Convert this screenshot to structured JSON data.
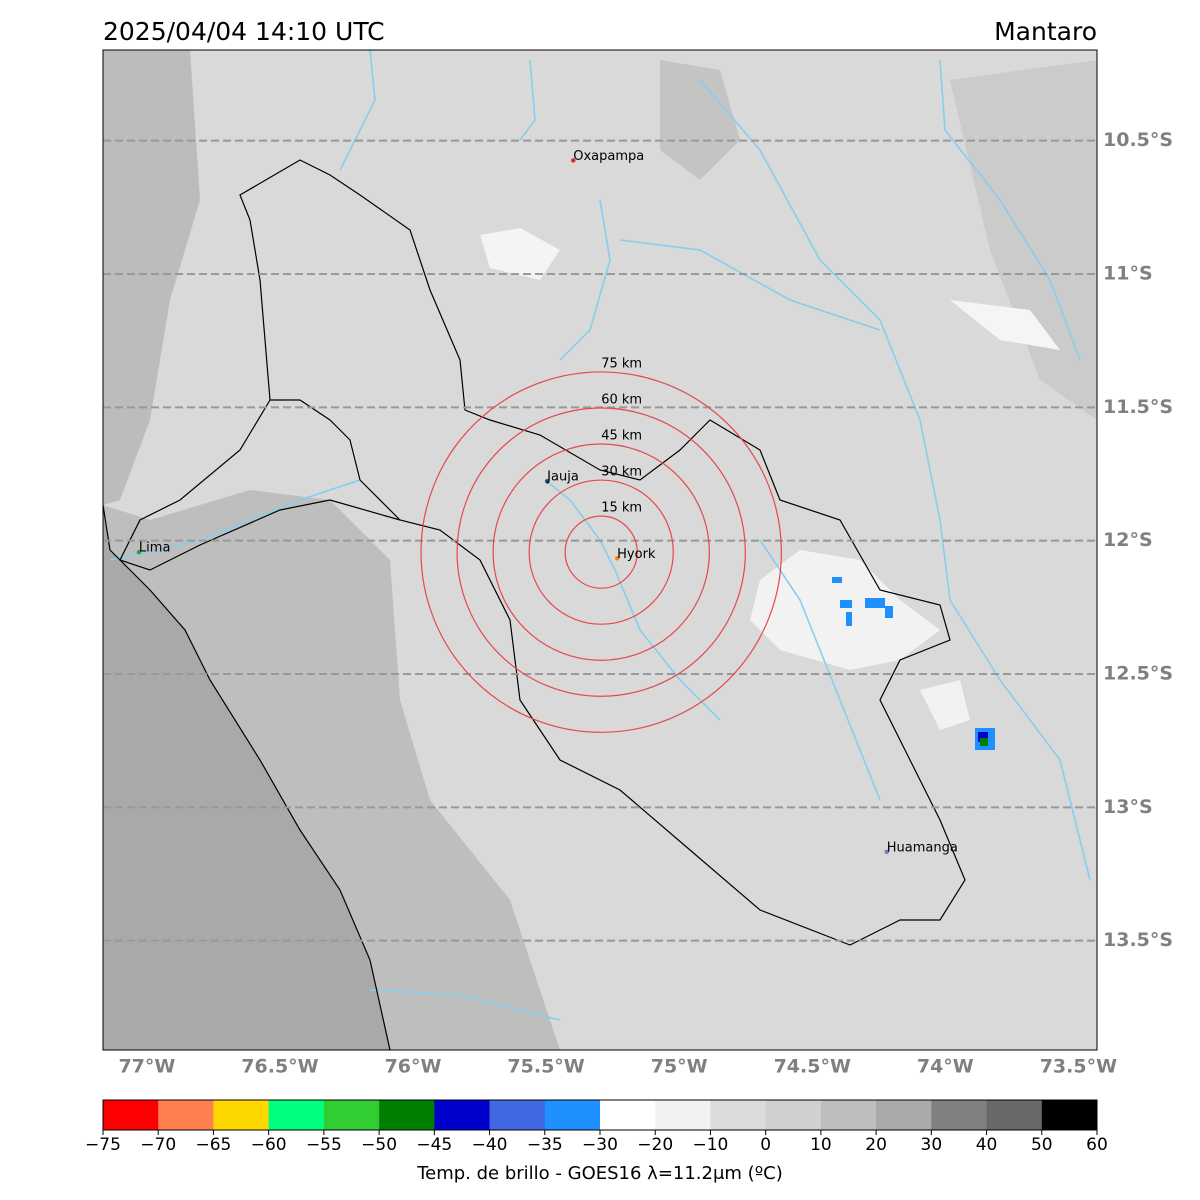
{
  "header": {
    "title": "2025/04/04 14:10 UTC",
    "region": "Mantaro"
  },
  "map": {
    "xlim": [
      -77.165,
      -73.43
    ],
    "ylim": [
      -13.91,
      -10.16
    ],
    "xticks": [
      {
        "value": -77,
        "label": "77°W"
      },
      {
        "value": -76.5,
        "label": "76.5°W"
      },
      {
        "value": -76,
        "label": "76°W"
      },
      {
        "value": -75.5,
        "label": "75.5°W"
      },
      {
        "value": -75,
        "label": "75°W"
      },
      {
        "value": -74.5,
        "label": "74.5°W"
      },
      {
        "value": -74,
        "label": "74°W"
      },
      {
        "value": -73.5,
        "label": "73.5°W"
      }
    ],
    "yticks": [
      {
        "value": -10.5,
        "label": "10.5°S"
      },
      {
        "value": -11,
        "label": "11°S"
      },
      {
        "value": -11.5,
        "label": "11.5°S"
      },
      {
        "value": -12,
        "label": "12°S"
      },
      {
        "value": -12.5,
        "label": "12.5°S"
      },
      {
        "value": -13,
        "label": "13°S"
      },
      {
        "value": -13.5,
        "label": "13.5°S"
      }
    ],
    "cities": [
      {
        "name": "Oxapampa",
        "lon": -75.398,
        "lat": -10.574,
        "color": "#d62728"
      },
      {
        "name": "Jauja",
        "lon": -75.496,
        "lat": -11.777,
        "color": "#1f4e79"
      },
      {
        "name": "Lima",
        "lon": -77.03,
        "lat": -12.043,
        "color": "#2ca02c"
      },
      {
        "name": "Huamanga",
        "lon": -74.22,
        "lat": -13.167,
        "color": "#9467bd"
      },
      {
        "name": "Hyork",
        "lon": -75.233,
        "lat": -12.066,
        "color": "#ff7f0e"
      }
    ],
    "rings": {
      "lon": -75.293,
      "lat": -12.043,
      "color": "#e8474a",
      "radii": [
        {
          "value": 15,
          "label": "15 km"
        },
        {
          "value": 30,
          "label": "30 km"
        },
        {
          "value": 45,
          "label": "45 km"
        },
        {
          "value": 60,
          "label": "60 km"
        },
        {
          "value": 75,
          "label": "75 km"
        }
      ]
    }
  },
  "colorbar": {
    "label": "Temp. de brillo - GOES16 λ=11.2μm (ºC)",
    "ticks": [
      {
        "value": -75,
        "label": "−75"
      },
      {
        "value": -70,
        "label": "−70"
      },
      {
        "value": -65,
        "label": "−65"
      },
      {
        "value": -60,
        "label": "−60"
      },
      {
        "value": -55,
        "label": "−55"
      },
      {
        "value": -50,
        "label": "−50"
      },
      {
        "value": -45,
        "label": "−45"
      },
      {
        "value": -40,
        "label": "−40"
      },
      {
        "value": -35,
        "label": "−35"
      },
      {
        "value": -30,
        "label": "−30"
      },
      {
        "value": -20,
        "label": "−20"
      },
      {
        "value": -10,
        "label": "−10"
      },
      0,
      10,
      20,
      30,
      40,
      50,
      60
    ],
    "colors": [
      "#ff0000",
      "#ff7f50",
      "#ffd700",
      "#00ff7f",
      "#32cd32",
      "#008000",
      "#0000cd",
      "#4169e1",
      "#1e90ff",
      "#ffffff",
      "#f2f2f2",
      "#dcdcdc",
      "#d0d0d0",
      "#bebebe",
      "#a9a9a9",
      "#808080",
      "#696969",
      "#000000"
    ]
  }
}
